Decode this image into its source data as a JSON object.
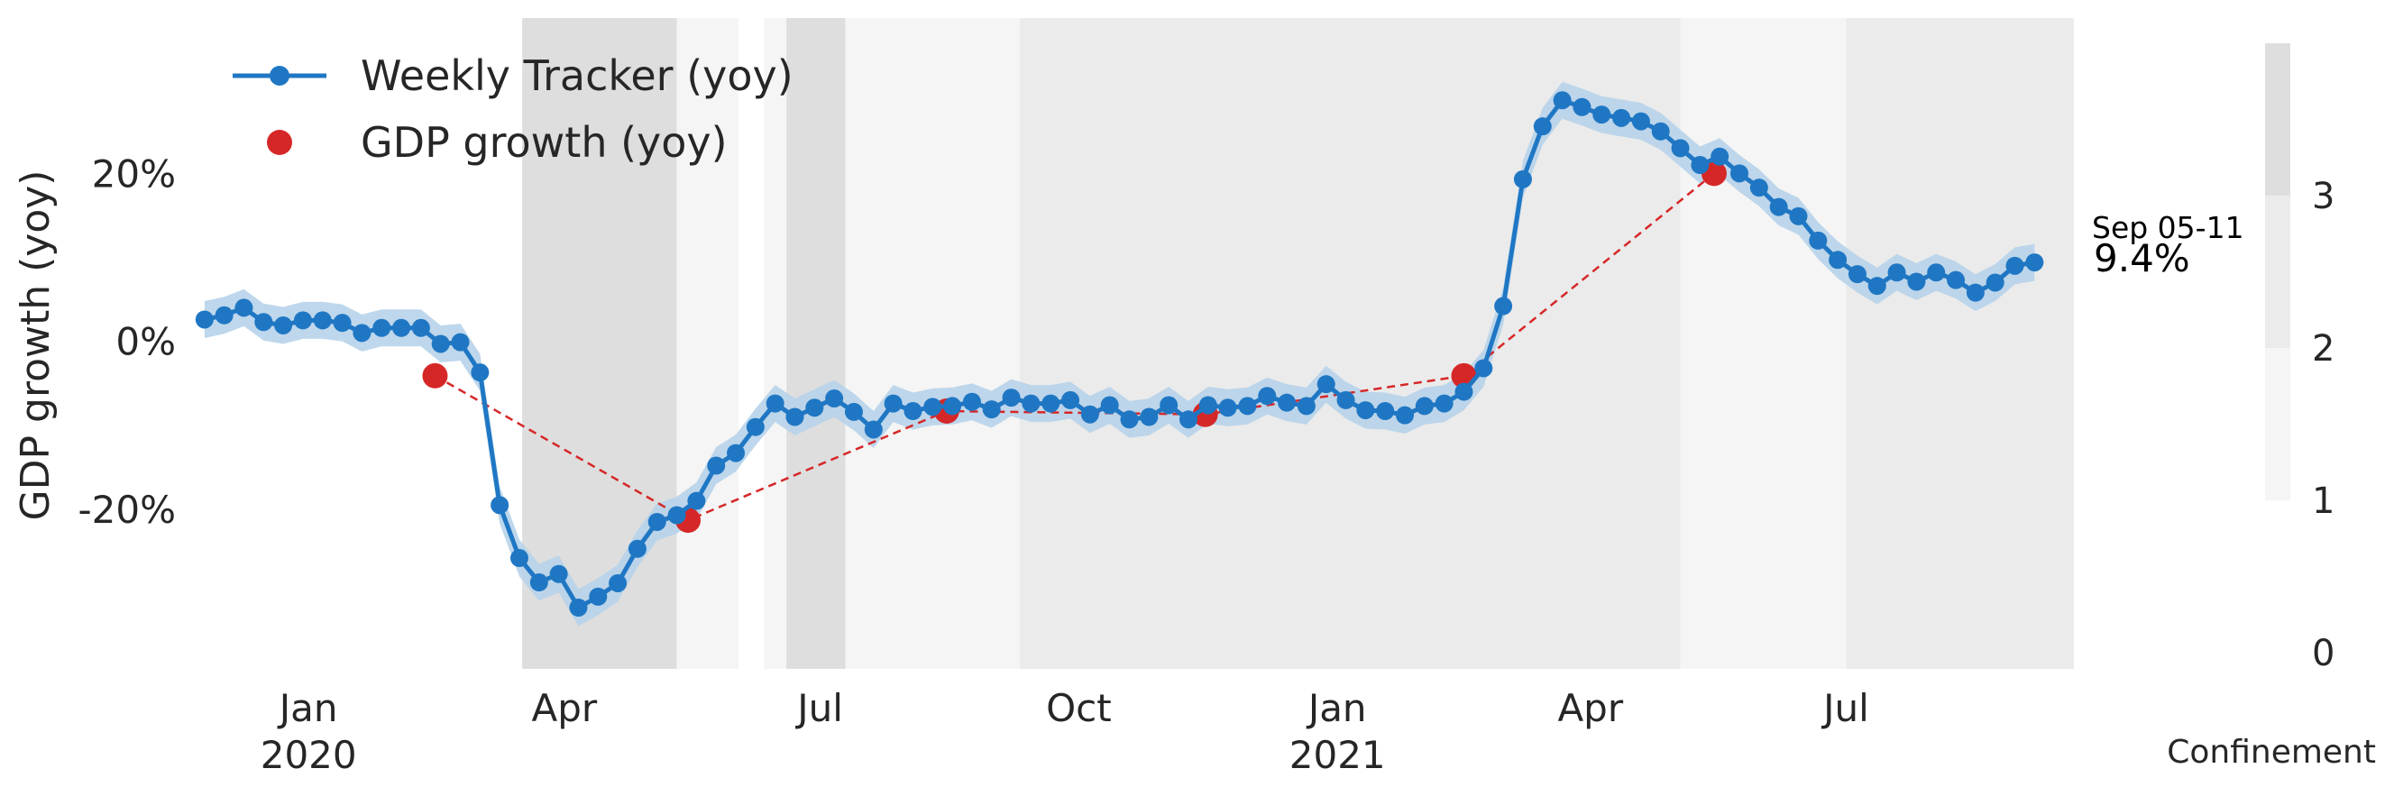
{
  "chart_data": {
    "type": "line",
    "title": "",
    "ylabel": "GDP growth (yoy)",
    "xlabel": "",
    "x_range": [
      "2019-11-18",
      "2021-09-20"
    ],
    "ylim": [
      -0.39,
      0.385
    ],
    "y_ticks": [
      {
        "value": 0.2,
        "label": "20%"
      },
      {
        "value": 0.0,
        "label": "0%"
      },
      {
        "value": -0.2,
        "label": "-20%"
      }
    ],
    "x_ticks": [
      {
        "date": "2020-01-01",
        "label": "Jan",
        "year": "2020"
      },
      {
        "date": "2020-04-01",
        "label": "Apr",
        "year": ""
      },
      {
        "date": "2020-07-01",
        "label": "Jul",
        "year": ""
      },
      {
        "date": "2020-10-01",
        "label": "Oct",
        "year": ""
      },
      {
        "date": "2021-01-01",
        "label": "Jan",
        "year": "2021"
      },
      {
        "date": "2021-04-01",
        "label": "Apr",
        "year": ""
      },
      {
        "date": "2021-07-01",
        "label": "Jul",
        "year": ""
      }
    ],
    "grid": false,
    "legend_position": "top-left",
    "series": [
      {
        "name": "Weekly Tracker (yoy)",
        "color": "#1f77c4",
        "band_color": "#b7d3ea",
        "band_halfwidth": 0.022,
        "points": [
          [
            "2019-11-25",
            0.026
          ],
          [
            "2019-12-02",
            0.031
          ],
          [
            "2019-12-09",
            0.04
          ],
          [
            "2019-12-16",
            0.023
          ],
          [
            "2019-12-23",
            0.019
          ],
          [
            "2019-12-30",
            0.025
          ],
          [
            "2020-01-06",
            0.025
          ],
          [
            "2020-01-13",
            0.022
          ],
          [
            "2020-01-20",
            0.01
          ],
          [
            "2020-01-27",
            0.016
          ],
          [
            "2020-02-03",
            0.016
          ],
          [
            "2020-02-10",
            0.016
          ],
          [
            "2020-02-17",
            -0.003
          ],
          [
            "2020-02-24",
            -0.001
          ],
          [
            "2020-03-02",
            -0.037
          ],
          [
            "2020-03-09",
            -0.195
          ],
          [
            "2020-03-16",
            -0.258
          ],
          [
            "2020-03-23",
            -0.287
          ],
          [
            "2020-03-30",
            -0.277
          ],
          [
            "2020-04-06",
            -0.317
          ],
          [
            "2020-04-13",
            -0.304
          ],
          [
            "2020-04-20",
            -0.288
          ],
          [
            "2020-04-27",
            -0.247
          ],
          [
            "2020-05-04",
            -0.215
          ],
          [
            "2020-05-11",
            -0.207
          ],
          [
            "2020-05-18",
            -0.19
          ],
          [
            "2020-05-25",
            -0.148
          ],
          [
            "2020-06-01",
            -0.133
          ],
          [
            "2020-06-08",
            -0.102
          ],
          [
            "2020-06-15",
            -0.074
          ],
          [
            "2020-06-22",
            -0.09
          ],
          [
            "2020-06-29",
            -0.079
          ],
          [
            "2020-07-06",
            -0.068
          ],
          [
            "2020-07-13",
            -0.084
          ],
          [
            "2020-07-20",
            -0.105
          ],
          [
            "2020-07-27",
            -0.074
          ],
          [
            "2020-08-03",
            -0.083
          ],
          [
            "2020-08-10",
            -0.078
          ],
          [
            "2020-08-17",
            -0.077
          ],
          [
            "2020-08-24",
            -0.072
          ],
          [
            "2020-08-31",
            -0.081
          ],
          [
            "2020-09-07",
            -0.067
          ],
          [
            "2020-09-14",
            -0.074
          ],
          [
            "2020-09-21",
            -0.074
          ],
          [
            "2020-09-28",
            -0.07
          ],
          [
            "2020-10-05",
            -0.087
          ],
          [
            "2020-10-12",
            -0.076
          ],
          [
            "2020-10-19",
            -0.093
          ],
          [
            "2020-10-26",
            -0.09
          ],
          [
            "2020-11-02",
            -0.076
          ],
          [
            "2020-11-09",
            -0.093
          ],
          [
            "2020-11-16",
            -0.076
          ],
          [
            "2020-11-23",
            -0.079
          ],
          [
            "2020-11-30",
            -0.077
          ],
          [
            "2020-12-07",
            -0.065
          ],
          [
            "2020-12-14",
            -0.073
          ],
          [
            "2020-12-21",
            -0.077
          ],
          [
            "2020-12-28",
            -0.051
          ],
          [
            "2021-01-04",
            -0.07
          ],
          [
            "2021-01-11",
            -0.082
          ],
          [
            "2021-01-18",
            -0.083
          ],
          [
            "2021-01-25",
            -0.088
          ],
          [
            "2021-02-01",
            -0.077
          ],
          [
            "2021-02-08",
            -0.074
          ],
          [
            "2021-02-15",
            -0.06
          ],
          [
            "2021-02-22",
            -0.032
          ],
          [
            "2021-03-01",
            0.042
          ],
          [
            "2021-03-08",
            0.193
          ],
          [
            "2021-03-15",
            0.256
          ],
          [
            "2021-03-22",
            0.287
          ],
          [
            "2021-03-29",
            0.279
          ],
          [
            "2021-04-05",
            0.27
          ],
          [
            "2021-04-12",
            0.266
          ],
          [
            "2021-04-19",
            0.262
          ],
          [
            "2021-04-26",
            0.25
          ],
          [
            "2021-05-03",
            0.23
          ],
          [
            "2021-05-10",
            0.21
          ],
          [
            "2021-05-17",
            0.22
          ],
          [
            "2021-05-24",
            0.2
          ],
          [
            "2021-05-31",
            0.183
          ],
          [
            "2021-06-07",
            0.16
          ],
          [
            "2021-06-14",
            0.149
          ],
          [
            "2021-06-21",
            0.12
          ],
          [
            "2021-06-28",
            0.097
          ],
          [
            "2021-07-05",
            0.08
          ],
          [
            "2021-07-12",
            0.066
          ],
          [
            "2021-07-19",
            0.082
          ],
          [
            "2021-07-26",
            0.071
          ],
          [
            "2021-08-02",
            0.082
          ],
          [
            "2021-08-09",
            0.073
          ],
          [
            "2021-08-16",
            0.058
          ],
          [
            "2021-08-23",
            0.07
          ],
          [
            "2021-08-30",
            0.09
          ],
          [
            "2021-09-06",
            0.094
          ]
        ]
      },
      {
        "name": "GDP growth (yoy)",
        "color": "#d62728",
        "style": "dashed",
        "points": [
          [
            "2020-02-15",
            -0.041
          ],
          [
            "2020-05-15",
            -0.213
          ],
          [
            "2020-08-15",
            -0.083
          ],
          [
            "2020-11-15",
            -0.087
          ],
          [
            "2021-02-15",
            -0.041
          ],
          [
            "2021-05-15",
            0.2
          ]
        ]
      }
    ],
    "annotation": {
      "date_label": "Sep 05-11",
      "value_label": "9.4%",
      "value": 0.094
    },
    "confinement_bands": [
      {
        "start": "2019-11-18",
        "end": "2020-03-17",
        "level": 0
      },
      {
        "start": "2020-03-17",
        "end": "2020-05-11",
        "level": 3
      },
      {
        "start": "2020-05-11",
        "end": "2020-06-02",
        "level": 1
      },
      {
        "start": "2020-06-02",
        "end": "2020-06-11",
        "level": 0
      },
      {
        "start": "2020-06-11",
        "end": "2020-06-19",
        "level": 1
      },
      {
        "start": "2020-06-19",
        "end": "2020-07-10",
        "level": 3
      },
      {
        "start": "2020-07-10",
        "end": "2020-09-10",
        "level": 1
      },
      {
        "start": "2020-09-10",
        "end": "2021-04-06",
        "level": 2
      },
      {
        "start": "2021-04-06",
        "end": "2021-05-03",
        "level": 2
      },
      {
        "start": "2021-05-03",
        "end": "2021-06-09",
        "level": 1
      },
      {
        "start": "2021-06-09",
        "end": "2021-07-01",
        "level": 1
      },
      {
        "start": "2021-07-01",
        "end": "2021-09-20",
        "level": 2
      }
    ],
    "colorbar": {
      "label": "Confinement",
      "ticks": [
        "0",
        "1",
        "2",
        "3"
      ],
      "colors": [
        "#ffffff",
        "#f5f5f5",
        "#ebebeb",
        "#dedede"
      ]
    }
  }
}
